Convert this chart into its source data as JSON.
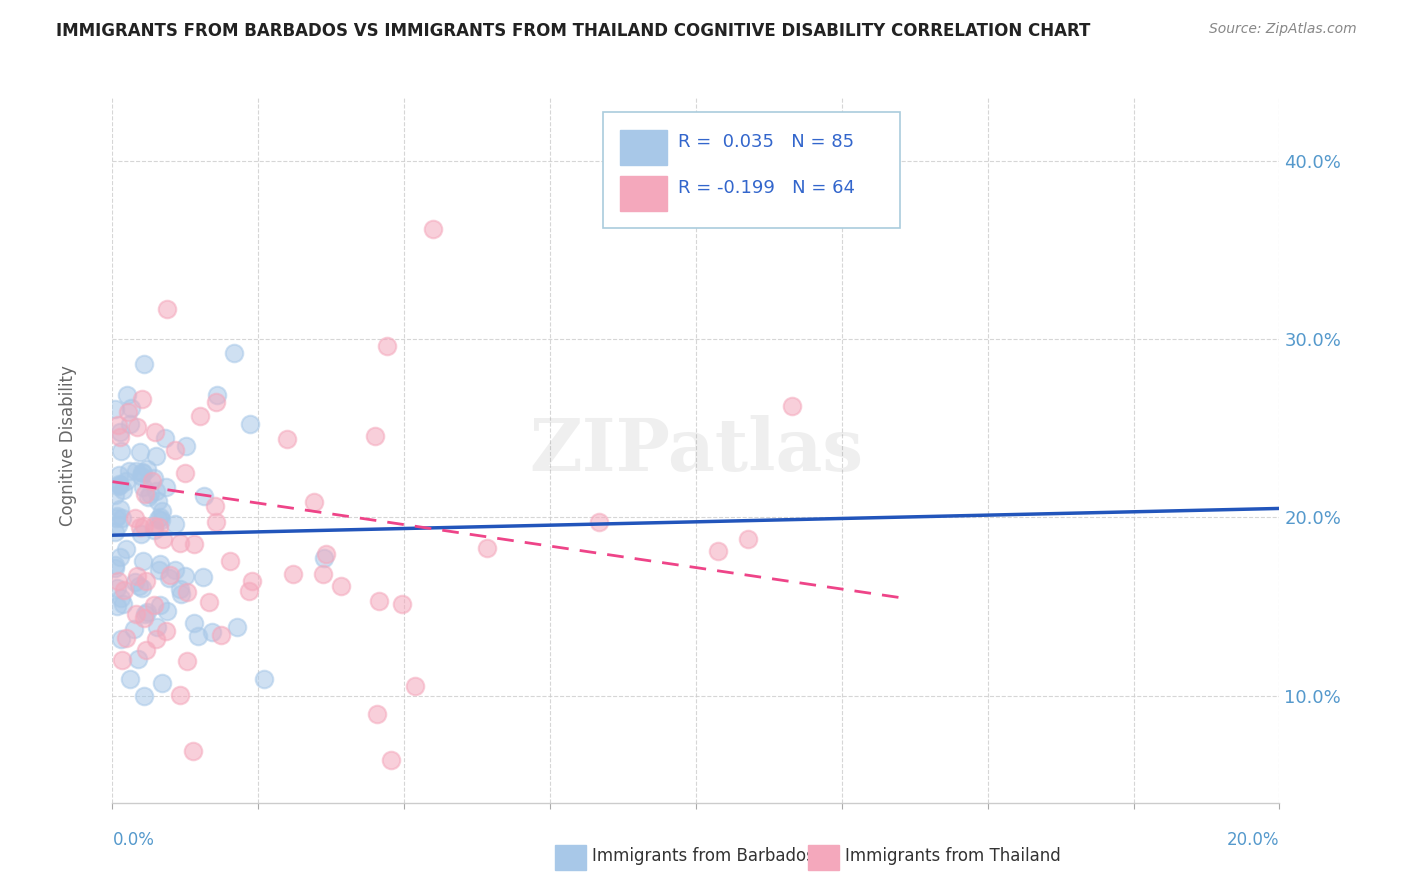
{
  "title": "IMMIGRANTS FROM BARBADOS VS IMMIGRANTS FROM THAILAND COGNITIVE DISABILITY CORRELATION CHART",
  "source": "Source: ZipAtlas.com",
  "ylabel": "Cognitive Disability",
  "y_ticks": [
    0.1,
    0.2,
    0.3,
    0.4
  ],
  "y_tick_labels": [
    "10.0%",
    "20.0%",
    "30.0%",
    "40.0%"
  ],
  "x_range": [
    0.0,
    0.2
  ],
  "y_range": [
    0.04,
    0.435
  ],
  "barbados_color": "#A8C8E8",
  "thailand_color": "#F4A8BC",
  "barbados_line_color": "#2255BB",
  "thailand_line_color": "#EE4488",
  "watermark": "ZIPatlas",
  "legend_text_color": "#3366CC",
  "barbados_seed": 101,
  "thailand_seed": 202,
  "barbados_N": 85,
  "thailand_N": 64,
  "barbados_R": 0.035,
  "thailand_R": -0.199,
  "blue_line_x0": 0.0,
  "blue_line_y0": 0.19,
  "blue_line_x1": 0.2,
  "blue_line_y1": 0.205,
  "pink_line_x0": 0.0,
  "pink_line_y0": 0.22,
  "pink_line_x1": 0.135,
  "pink_line_y1": 0.155
}
